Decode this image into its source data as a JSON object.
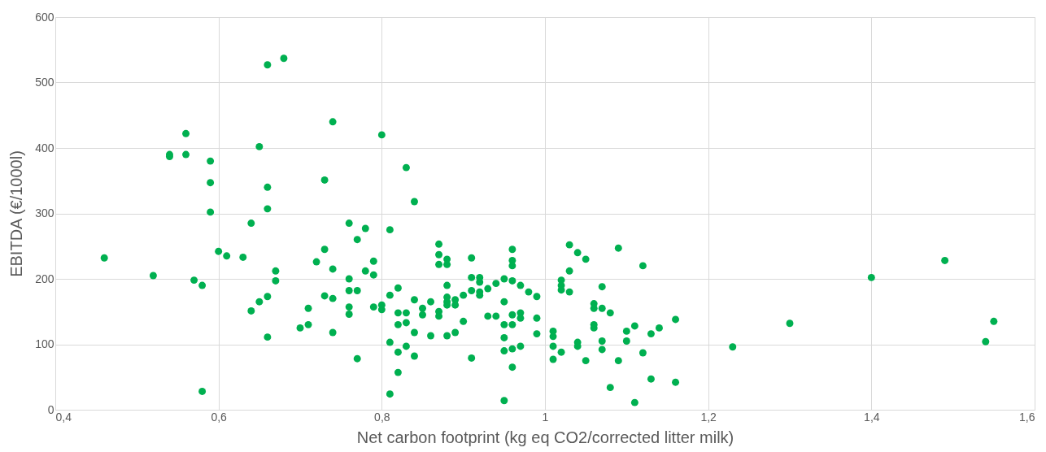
{
  "chart_data": {
    "type": "scatter",
    "xlabel": "Net carbon footprint (kg eq CO2/corrected litter milk)",
    "ylabel": "EBITDA (€/1000l)",
    "xlim": [
      0.4,
      1.6
    ],
    "xticks": [
      {
        "value": 0.4,
        "label": "0,4"
      },
      {
        "value": 0.6,
        "label": "0,6"
      },
      {
        "value": 0.8,
        "label": "0,8"
      },
      {
        "value": 1,
        "label": "1"
      },
      {
        "value": 1.2,
        "label": "1,2"
      },
      {
        "value": 1.4,
        "label": "1,4"
      },
      {
        "value": 1.6,
        "label": "1,6"
      }
    ],
    "ylim": [
      0,
      600
    ],
    "yticks": [
      0,
      100,
      200,
      300,
      400,
      500,
      600
    ],
    "grid": true,
    "marker": "circle",
    "series": [
      {
        "color": "#00b050",
        "x": [
          0.46,
          0.52,
          0.54,
          0.54,
          0.56,
          0.56,
          0.57,
          0.58,
          0.58,
          0.59,
          0.59,
          0.59,
          0.6,
          0.61,
          0.63,
          0.64,
          0.64,
          0.65,
          0.65,
          0.66,
          0.66,
          0.66,
          0.66,
          0.66,
          0.67,
          0.67,
          0.68,
          0.7,
          0.71,
          0.71,
          0.72,
          0.73,
          0.73,
          0.73,
          0.74,
          0.74,
          0.74,
          0.74,
          0.76,
          0.76,
          0.76,
          0.76,
          0.76,
          0.77,
          0.77,
          0.77,
          0.78,
          0.78,
          0.79,
          0.79,
          0.79,
          0.8,
          0.8,
          0.8,
          0.81,
          0.81,
          0.81,
          0.81,
          0.82,
          0.82,
          0.82,
          0.82,
          0.82,
          0.83,
          0.83,
          0.83,
          0.83,
          0.84,
          0.84,
          0.84,
          0.84,
          0.85,
          0.85,
          0.86,
          0.86,
          0.87,
          0.87,
          0.87,
          0.87,
          0.87,
          0.88,
          0.88,
          0.88,
          0.88,
          0.88,
          0.88,
          0.88,
          0.89,
          0.89,
          0.89,
          0.9,
          0.9,
          0.91,
          0.91,
          0.91,
          0.91,
          0.92,
          0.92,
          0.92,
          0.92,
          0.93,
          0.93,
          0.94,
          0.94,
          0.95,
          0.95,
          0.95,
          0.95,
          0.95,
          0.95,
          0.96,
          0.96,
          0.96,
          0.96,
          0.96,
          0.96,
          0.96,
          0.96,
          0.97,
          0.97,
          0.97,
          0.97,
          0.98,
          0.99,
          0.99,
          0.99,
          1.01,
          1.01,
          1.01,
          1.01,
          1.02,
          1.02,
          1.02,
          1.02,
          1.03,
          1.03,
          1.03,
          1.04,
          1.04,
          1.04,
          1.05,
          1.05,
          1.06,
          1.06,
          1.06,
          1.06,
          1.07,
          1.07,
          1.07,
          1.07,
          1.08,
          1.08,
          1.09,
          1.09,
          1.1,
          1.1,
          1.11,
          1.11,
          1.12,
          1.12,
          1.13,
          1.13,
          1.14,
          1.16,
          1.16,
          1.23,
          1.3,
          1.4,
          1.49,
          1.54,
          1.55
        ],
        "values": [
          232,
          205,
          390,
          387,
          422,
          390,
          198,
          190,
          28,
          380,
          347,
          302,
          242,
          235,
          233,
          285,
          151,
          402,
          165,
          527,
          340,
          307,
          173,
          111,
          212,
          197,
          537,
          125,
          155,
          130,
          226,
          351,
          245,
          174,
          440,
          215,
          170,
          118,
          285,
          200,
          182,
          157,
          146,
          260,
          182,
          78,
          277,
          212,
          227,
          206,
          157,
          420,
          160,
          153,
          275,
          175,
          103,
          24,
          186,
          148,
          130,
          88,
          57,
          370,
          148,
          133,
          97,
          318,
          168,
          118,
          82,
          155,
          145,
          165,
          113,
          253,
          237,
          222,
          150,
          143,
          230,
          222,
          190,
          172,
          165,
          160,
          113,
          168,
          160,
          118,
          175,
          135,
          232,
          202,
          182,
          79,
          202,
          195,
          180,
          175,
          185,
          143,
          193,
          143,
          200,
          165,
          130,
          110,
          90,
          14,
          245,
          228,
          220,
          197,
          145,
          130,
          93,
          65,
          190,
          148,
          140,
          97,
          180,
          173,
          140,
          116,
          120,
          112,
          97,
          77,
          198,
          190,
          183,
          88,
          252,
          212,
          180,
          240,
          103,
          97,
          230,
          75,
          162,
          155,
          130,
          125,
          188,
          155,
          105,
          92,
          148,
          34,
          247,
          75,
          120,
          105,
          128,
          11,
          220,
          87,
          116,
          47,
          125,
          138,
          42,
          96,
          132,
          202,
          228,
          104,
          135
        ]
      }
    ]
  }
}
